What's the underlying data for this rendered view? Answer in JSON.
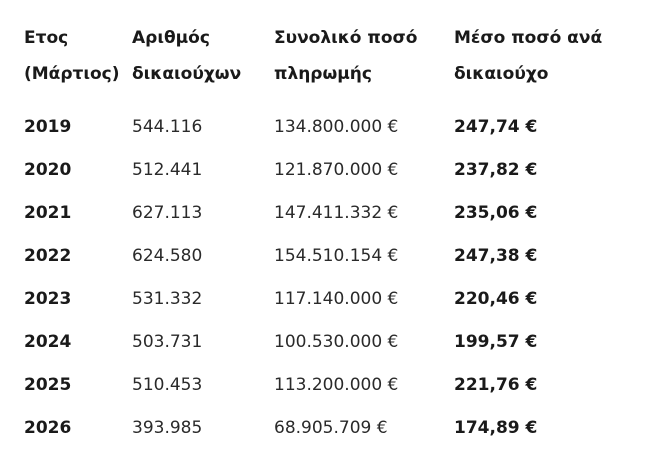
{
  "headers": [
    [
      "Ετος",
      "(Μάρτιος)"
    ],
    [
      "Αριθμός",
      "δικαιούχων"
    ],
    [
      "Συνολικό ποσό",
      "πληρωμής"
    ],
    [
      "Μέσο ποσό ανά",
      "δικαιούχο"
    ]
  ],
  "rows": [
    [
      "2019",
      "544.116",
      "134.800.000 €",
      "247,74 €"
    ],
    [
      "2020",
      "512.441",
      "121.870.000 €",
      "237,82 €"
    ],
    [
      "2021",
      "627.113",
      "147.411.332 €",
      "235,06 €"
    ],
    [
      "2022",
      "624.580",
      "154.510.154 €",
      "247,38 €"
    ],
    [
      "2023",
      "531.332",
      "117.140.000 €",
      "220,46 €"
    ],
    [
      "2024",
      "503.731",
      "100.530.000 €",
      "199,57 €"
    ],
    [
      "2025",
      "510.453",
      "113.200.000 €",
      "221,76 €"
    ],
    [
      "2026",
      "393.985",
      "68.905.709 €",
      "174,89 €"
    ]
  ]
}
